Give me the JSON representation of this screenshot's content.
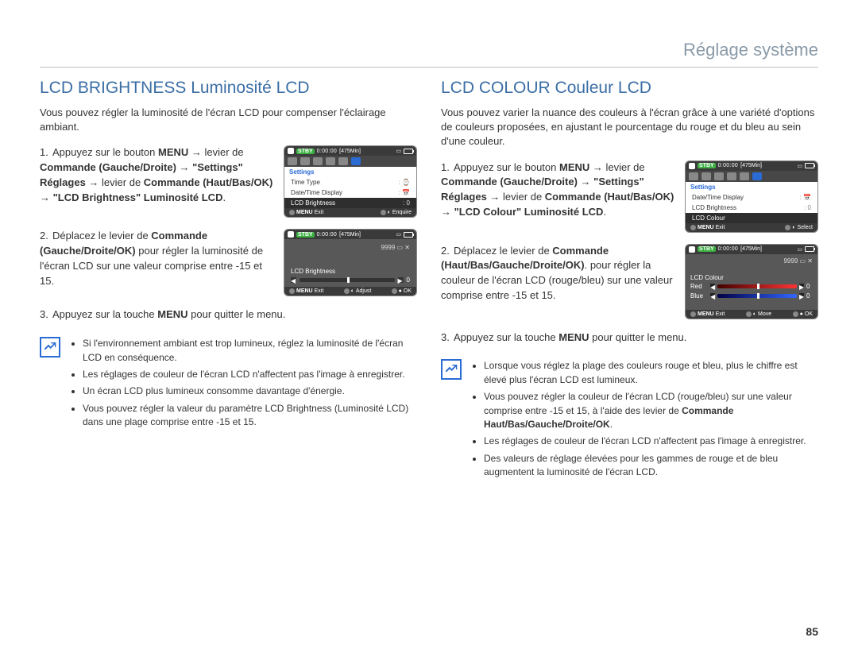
{
  "breadcrumb": "Réglage système",
  "page_number": "85",
  "colors": {
    "heading": "#3b6ea5",
    "breadcrumb": "#8a9aa8",
    "accent_blue": "#2a6bd4",
    "lcd_dark": "#3a3a3a"
  },
  "left": {
    "title": "LCD BRIGHTNESS Luminosité LCD",
    "intro": "Vous pouvez régler la luminosité de l'écran LCD pour compenser l'éclairage ambiant.",
    "steps": [
      {
        "num": "1.",
        "parts": [
          {
            "t": "Appuyez sur le bouton ",
            "b": false
          },
          {
            "t": "MENU",
            "b": true
          },
          {
            "t": " → levier de ",
            "b": false
          },
          {
            "t": "Commande (Gauche/Droite)",
            "b": true
          },
          {
            "t": " → ",
            "b": false
          },
          {
            "t": "\"Settings\" Réglages",
            "b": true
          },
          {
            "t": " → levier de ",
            "b": false
          },
          {
            "t": "Commande (Haut/Bas/OK)",
            "b": true
          },
          {
            "t": " → ",
            "b": false
          },
          {
            "t": "\"LCD Brightness\" Luminosité LCD",
            "b": true
          },
          {
            "t": ".",
            "b": false
          }
        ]
      },
      {
        "num": "2.",
        "parts": [
          {
            "t": "Déplacez le levier de ",
            "b": false
          },
          {
            "t": "Commande (Gauche/Droite/OK)",
            "b": true
          },
          {
            "t": " pour régler la luminosité de l'écran LCD sur une valeur comprise entre -15 et 15.",
            "b": false
          }
        ]
      },
      {
        "num": "3.",
        "parts": [
          {
            "t": "Appuyez sur la touche ",
            "b": false
          },
          {
            "t": "MENU",
            "b": true
          },
          {
            "t": " pour quitter le menu.",
            "b": false
          }
        ]
      }
    ],
    "lcd_menu": {
      "stby": "STBY",
      "time": "0:00:00",
      "remain": "[475Min]",
      "settings_label": "Settings",
      "rows": [
        {
          "label": "Time Type",
          "val": ": ⌚"
        },
        {
          "label": "Date/Time Display",
          "val": ": 📅"
        },
        {
          "label": "LCD Brightness",
          "val": ": 0",
          "hl": true
        }
      ],
      "foot": [
        {
          "k": "MENU",
          "v": "Exit"
        },
        {
          "k": "◐",
          "v": "Enquire"
        }
      ]
    },
    "lcd_adjust": {
      "stby": "STBY",
      "time": "0:00:00",
      "remain": "[475Min]",
      "counter": "9999",
      "label": "LCD Brightness",
      "value": "0",
      "foot": [
        {
          "k": "MENU",
          "v": "Exit"
        },
        {
          "k": "◐",
          "v": "Adjust"
        },
        {
          "k": "●",
          "v": "OK"
        }
      ]
    },
    "notes": [
      "Si l'environnement ambiant est trop lumineux, réglez la luminosité de l'écran LCD en conséquence.",
      "Les réglages de couleur de l'écran LCD n'affectent pas l'image à enregistrer.",
      "Un écran LCD plus lumineux consomme davantage d'énergie.",
      "Vous pouvez régler la valeur du paramètre LCD Brightness (Luminosité LCD) dans une plage comprise entre -15 et 15."
    ]
  },
  "right": {
    "title": "LCD COLOUR Couleur LCD",
    "intro": "Vous pouvez varier la nuance des couleurs à l'écran grâce à une variété d'options de couleurs proposées, en ajustant le pourcentage du rouge et du bleu au sein d'une couleur.",
    "steps": [
      {
        "num": "1.",
        "parts": [
          {
            "t": "Appuyez sur le bouton ",
            "b": false
          },
          {
            "t": "MENU",
            "b": true
          },
          {
            "t": " → levier de ",
            "b": false
          },
          {
            "t": "Commande (Gauche/Droite)",
            "b": true
          },
          {
            "t": " → ",
            "b": false
          },
          {
            "t": "\"Settings\" Réglages",
            "b": true
          },
          {
            "t": " → levier de ",
            "b": false
          },
          {
            "t": "Commande (Haut/Bas/OK)",
            "b": true
          },
          {
            "t": " → ",
            "b": false
          },
          {
            "t": "\"LCD Colour\" Luminosité LCD",
            "b": true
          },
          {
            "t": ".",
            "b": false
          }
        ]
      },
      {
        "num": "2.",
        "parts": [
          {
            "t": "Déplacez le levier de ",
            "b": false
          },
          {
            "t": "Commande (Haut/Bas/Gauche/Droite/OK)",
            "b": true
          },
          {
            "t": ". pour régler la couleur de l'écran LCD (rouge/bleu) sur une valeur comprise entre -15 et 15.",
            "b": false
          }
        ]
      },
      {
        "num": "3.",
        "parts": [
          {
            "t": "Appuyez sur la touche ",
            "b": false
          },
          {
            "t": "MENU",
            "b": true
          },
          {
            "t": " pour quitter le menu.",
            "b": false
          }
        ]
      }
    ],
    "lcd_menu": {
      "stby": "STBY",
      "time": "0:00:00",
      "remain": "[475Min]",
      "settings_label": "Settings",
      "rows": [
        {
          "label": "Date/Time Display",
          "val": ": 📅"
        },
        {
          "label": "LCD Brightness",
          "val": ": 0"
        },
        {
          "label": "LCD Colour",
          "val": "",
          "hl": true
        }
      ],
      "foot": [
        {
          "k": "MENU",
          "v": "Exit"
        },
        {
          "k": "◐",
          "v": "Select"
        }
      ]
    },
    "lcd_adjust": {
      "stby": "STBY",
      "time": "0:00:00",
      "remain": "[475Min]",
      "counter": "9999",
      "label": "LCD Colour",
      "sliders": [
        {
          "name": "Red",
          "value": "0",
          "cls": "red"
        },
        {
          "name": "Blue",
          "value": "0",
          "cls": "blue"
        }
      ],
      "foot": [
        {
          "k": "MENU",
          "v": "Exit"
        },
        {
          "k": "◐",
          "v": "Move"
        },
        {
          "k": "●",
          "v": "OK"
        }
      ]
    },
    "notes": [
      "Lorsque vous réglez la plage des couleurs rouge et bleu, plus le chiffre est élevé plus l'écran LCD est lumineux.",
      "Vous pouvez régler la couleur de l'écran LCD (rouge/bleu) sur une valeur comprise entre -15 et 15, à l'aide des levier de <b>Commande Haut/Bas/Gauche/Droite/OK</b>.",
      "Les réglages de couleur de l'écran LCD n'affectent pas l'image à enregistrer.",
      "Des valeurs de réglage élevées pour les gammes de rouge et de bleu augmentent la luminosité de l'écran LCD."
    ]
  }
}
